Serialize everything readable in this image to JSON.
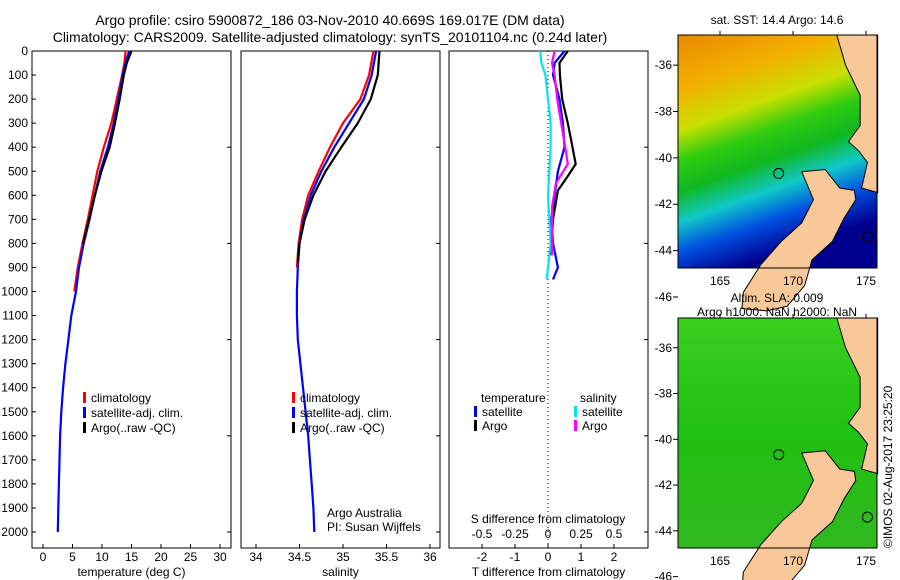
{
  "header": {
    "line1": "Argo profile: csiro 5900872_186 03-Nov-2010 40.669S 169.017E (DM data)",
    "line2": "Climatology: CARS2009. Satellite-adjusted climatology: synTS_20101104.nc (0.24d later)"
  },
  "colors": {
    "climatology": "#ff0000",
    "satellite": "#0000ff",
    "argo": "#000000",
    "sal_sat": "#00e5ee",
    "sal_argo": "#ff00ff",
    "land": "#f8c898"
  },
  "chart_data": [
    {
      "type": "line",
      "xlabel": "temperature (deg C)",
      "ylabel": "",
      "xlim": [
        -2,
        32
      ],
      "ylim": [
        2060,
        0
      ],
      "xticks": [
        0,
        5,
        10,
        15,
        20,
        25,
        30
      ],
      "yticks": [
        0,
        100,
        200,
        300,
        400,
        500,
        600,
        700,
        800,
        900,
        1000,
        1100,
        1200,
        1300,
        1400,
        1500,
        1600,
        1700,
        1800,
        1900,
        2000
      ],
      "legend": [
        "climatology",
        "satellite-adj. clim.",
        "Argo(..raw -QC)"
      ],
      "legend_position": "lower-center",
      "series": [
        {
          "name": "climatology",
          "depth": [
            0,
            50,
            100,
            200,
            300,
            400,
            500,
            600,
            700,
            800,
            900,
            1000
          ],
          "values": [
            14.0,
            13.8,
            13.4,
            12.5,
            11.6,
            10.3,
            9.2,
            8.4,
            7.6,
            6.7,
            5.9,
            5.3
          ]
        },
        {
          "name": "satellite-adj. clim.",
          "depth": [
            0,
            50,
            100,
            200,
            300,
            400,
            500,
            600,
            700,
            800,
            900,
            1000,
            1100,
            1200,
            1300,
            1400,
            1500,
            1600,
            1700,
            1800,
            1900,
            2000
          ],
          "values": [
            14.6,
            14.0,
            13.5,
            12.8,
            12.0,
            11.0,
            9.7,
            8.8,
            7.9,
            6.9,
            6.1,
            5.6,
            4.8,
            4.3,
            3.8,
            3.4,
            3.1,
            2.9,
            2.8,
            2.7,
            2.6,
            2.5
          ]
        },
        {
          "name": "Argo(..raw -QC)",
          "depth": [
            0,
            50,
            100,
            200,
            300,
            400,
            500,
            600,
            700,
            800
          ],
          "values": [
            15.0,
            14.2,
            13.7,
            13.0,
            12.2,
            11.3,
            9.9,
            8.8,
            7.8,
            6.8
          ]
        }
      ]
    },
    {
      "type": "line",
      "xlabel": "salinity",
      "xlim": [
        33.8,
        36.1
      ],
      "ylim": [
        2060,
        0
      ],
      "xticks": [
        34,
        34.5,
        35,
        35.5,
        36
      ],
      "legend": [
        "climatology",
        "satellite-adj. clim.",
        "Argo(..raw -QC)"
      ],
      "annotation": [
        "Argo Australia",
        "PI: Susan Wijffels"
      ],
      "series": [
        {
          "name": "climatology",
          "depth": [
            0,
            100,
            200,
            300,
            400,
            500,
            600,
            700,
            800,
            900
          ],
          "values": [
            35.35,
            35.3,
            35.2,
            35.0,
            34.85,
            34.72,
            34.6,
            34.53,
            34.49,
            34.47
          ]
        },
        {
          "name": "satellite-adj. clim.",
          "depth": [
            0,
            100,
            200,
            300,
            400,
            500,
            600,
            700,
            800,
            900,
            1000,
            1100,
            1200,
            1300,
            1400,
            1500,
            1600,
            1700,
            1800,
            1900,
            2000
          ],
          "values": [
            35.38,
            35.33,
            35.24,
            35.07,
            34.9,
            34.75,
            34.63,
            34.55,
            34.5,
            34.48,
            34.47,
            34.47,
            34.48,
            34.51,
            34.54,
            34.57,
            34.6,
            34.62,
            34.64,
            34.66,
            34.67
          ]
        },
        {
          "name": "Argo(..raw -QC)",
          "depth": [
            0,
            100,
            200,
            300,
            400,
            500,
            600,
            700,
            800,
            880
          ],
          "values": [
            35.42,
            35.4,
            35.32,
            35.17,
            34.98,
            34.8,
            34.66,
            34.56,
            34.5,
            34.48
          ]
        }
      ]
    },
    {
      "type": "line",
      "xlabel": "T difference from climatology",
      "x2label": "S difference from climatology",
      "xlim": [
        -3,
        3
      ],
      "x2lim": [
        -0.75,
        0.75
      ],
      "ylim": [
        2060,
        0
      ],
      "xticks": [
        -2,
        -1,
        0,
        1,
        2
      ],
      "x2ticks": [
        -0.5,
        -0.25,
        0,
        0.25,
        0.5
      ],
      "legend": {
        "temperature": "temperature",
        "salinity": "salinity",
        "satellite": "satellite",
        "argo": "Argo"
      },
      "series": [
        {
          "name": "T satellite",
          "axis": "T",
          "depth": [
            0,
            50,
            100,
            200,
            300,
            400,
            500,
            600,
            700,
            800,
            900,
            950
          ],
          "values": [
            0.5,
            0.2,
            0.15,
            0.35,
            0.45,
            0.5,
            0.3,
            0.2,
            0.1,
            0.15,
            0.3,
            0.15
          ]
        },
        {
          "name": "T Argo",
          "axis": "T",
          "depth": [
            0,
            50,
            100,
            200,
            300,
            370,
            470,
            520,
            580,
            700,
            800,
            850
          ],
          "values": [
            0.6,
            0.35,
            0.36,
            0.43,
            0.6,
            0.7,
            0.84,
            0.6,
            0.3,
            0.15,
            0.1,
            0.1
          ]
        },
        {
          "name": "S satellite",
          "axis": "S",
          "depth": [
            0,
            50,
            100,
            200,
            300,
            400,
            500,
            600,
            700,
            800,
            900,
            950
          ],
          "values": [
            -0.06,
            -0.05,
            -0.02,
            0.0,
            0.02,
            0.02,
            0.01,
            0.0,
            0.01,
            0.02,
            0.0,
            -0.01
          ]
        },
        {
          "name": "S Argo",
          "axis": "S",
          "depth": [
            0,
            50,
            100,
            200,
            300,
            400,
            470,
            550,
            650,
            750,
            850
          ],
          "values": [
            0.05,
            0.03,
            0.05,
            0.07,
            0.1,
            0.13,
            0.15,
            0.06,
            0.03,
            0.03,
            0.03
          ]
        }
      ]
    }
  ],
  "maps": {
    "sst": {
      "title": "sat. SST: 14.4 Argo: 14.6"
    },
    "sla": {
      "title1": "Altim. SLA: 0.009",
      "title2": "Argo h1000: NaN h2000: NaN"
    },
    "lon_ticks": [
      165,
      170,
      175
    ],
    "lat_ticks": [
      -36,
      -38,
      -40,
      -42,
      -44,
      -46
    ],
    "argo_position": {
      "lat": -40.669,
      "lon": 169.017
    },
    "credit": "©IMOS 02-Aug-2017 23:25:20"
  }
}
